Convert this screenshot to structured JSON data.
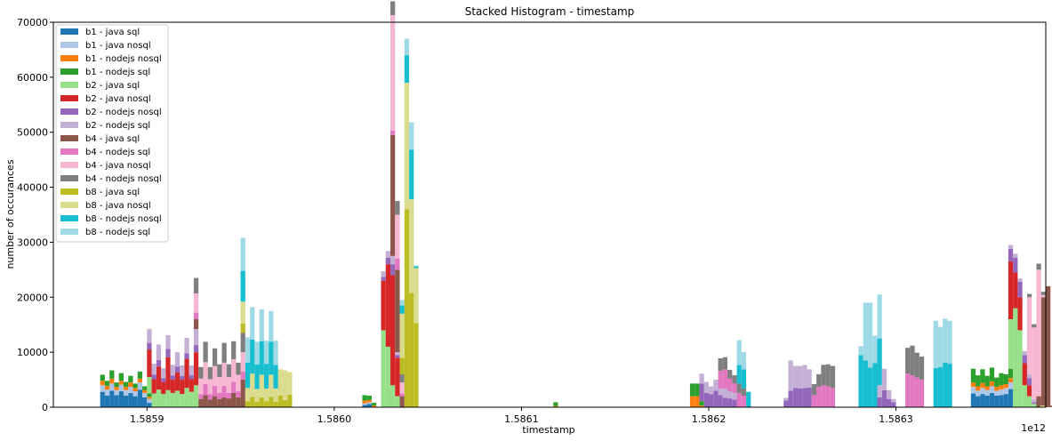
{
  "chart_data": {
    "type": "bar",
    "title": "Stacked Histogram - timestamp",
    "xlabel": "timestamp",
    "ylabel": "number of occurances",
    "offset_label": "1e12",
    "x_scale_note": "x values in units of 1e12",
    "xlim": [
      1.58585,
      1.58638
    ],
    "ylim": [
      0,
      70000
    ],
    "x_ticks": [
      1.5859,
      1.586,
      1.5861,
      1.5862,
      1.5863
    ],
    "x_tick_labels": [
      "1.5859",
      "1.5860",
      "1.5861",
      "1.5862",
      "1.5863"
    ],
    "y_ticks": [
      0,
      10000,
      20000,
      30000,
      40000,
      50000,
      60000,
      70000
    ],
    "y_tick_labels": [
      "0",
      "10000",
      "20000",
      "30000",
      "40000",
      "50000",
      "60000",
      "70000"
    ],
    "bin_width": 2.5e-06,
    "legend_position": "upper left",
    "series_names": [
      "b1 - java sql",
      "b1 - java nosql",
      "b1 - nodejs nosql",
      "b1 - nodejs sql",
      "b2 - java sql",
      "b2 - java nosql",
      "b2 - nodejs nosql",
      "b2 - nodejs sql",
      "b4 - java sql",
      "b4 - nodejs sql",
      "b4 - java nosql",
      "b4 - nodejs nosql",
      "b8 - java sql",
      "b8 - java nosql",
      "b8 - nodejs nosql",
      "b8 - nodejs sql"
    ],
    "series_colors": [
      "#1f77b4",
      "#aec7e8",
      "#ff7f0e",
      "#2ca02c",
      "#98df8a",
      "#d62728",
      "#9467bd",
      "#c5b0d5",
      "#8c564b",
      "#e377c2",
      "#f7b6d2",
      "#7f7f7f",
      "#bcbd22",
      "#dbdb8d",
      "#17becf",
      "#9edae5"
    ],
    "groups": [
      {
        "series": 0,
        "x_start": 1.585875,
        "values": [
          2800,
          2100,
          3000,
          2200,
          2900,
          2100,
          2600,
          2000,
          3200,
          1800,
          800
        ]
      },
      {
        "series": 1,
        "x_start": 1.585875,
        "values": [
          1200,
          1100,
          1300,
          900,
          1200,
          1000,
          1100,
          900,
          1300,
          800,
          700
        ]
      },
      {
        "series": 2,
        "x_start": 1.585875,
        "values": [
          800,
          700,
          900,
          600,
          700,
          600,
          800,
          600,
          700,
          500,
          400
        ]
      },
      {
        "series": 3,
        "x_start": 1.585875,
        "values": [
          1100,
          900,
          1500,
          800,
          1400,
          900,
          1200,
          800,
          1300,
          700,
          600
        ]
      },
      {
        "series": 4,
        "x_start": 1.5859,
        "values": [
          3000,
          2500,
          3200,
          2400,
          3100,
          2600,
          3000,
          2400,
          3500,
          2800,
          4000
        ]
      },
      {
        "series": 5,
        "x_start": 1.5859,
        "values": [
          5000,
          2600,
          4200,
          2200,
          6000,
          2400,
          3300,
          2600,
          5300,
          2300,
          6000
        ]
      },
      {
        "series": 6,
        "x_start": 1.5859,
        "values": [
          1200,
          800,
          1200,
          700,
          1500,
          800,
          1100,
          700,
          1000,
          700,
          1300
        ]
      },
      {
        "series": 7,
        "x_start": 1.5859,
        "values": [
          2500,
          2000,
          2800,
          1800,
          2500,
          1900,
          2600,
          1900,
          2800,
          1800,
          2900
        ]
      },
      {
        "series": 8,
        "x_start": 1.585925,
        "values": [
          1800,
          1500,
          2200,
          1400,
          2000,
          1500,
          1800,
          1600,
          2600,
          1800,
          5000
        ]
      },
      {
        "series": 9,
        "x_start": 1.585925,
        "values": [
          1200,
          900,
          2000,
          1000,
          1900,
          1100,
          2100,
          1000,
          2000,
          1100,
          1500
        ]
      },
      {
        "series": 10,
        "x_start": 1.585925,
        "values": [
          3500,
          2800,
          4000,
          2700,
          3600,
          2900,
          4200,
          2900,
          4100,
          3000,
          3500
        ]
      },
      {
        "series": 11,
        "x_start": 1.585925,
        "values": [
          2800,
          2100,
          3700,
          2200,
          3200,
          2300,
          3600,
          2300,
          3300,
          2200,
          3500
        ]
      },
      {
        "series": 12,
        "x_start": 1.58595,
        "values": [
          1700,
          1100,
          1900,
          1000,
          1800,
          1100,
          1900,
          1000,
          2100,
          1300,
          2300
        ]
      },
      {
        "series": 13,
        "x_start": 1.58595,
        "values": [
          4000,
          2400,
          4200,
          2300,
          4100,
          2300,
          4000,
          2400,
          4800,
          5400,
          4100
        ]
      },
      {
        "series": 14,
        "x_start": 1.58595,
        "values": [
          5600,
          4600,
          6200,
          4500,
          6100,
          4500,
          6000,
          4300,
          0,
          0,
          0
        ]
      },
      {
        "series": 15,
        "x_start": 1.58595,
        "values": [
          6000,
          4600,
          5900,
          4100,
          5800,
          4200,
          5600,
          4400,
          0,
          0,
          0
        ]
      },
      {
        "series": 0,
        "x_start": 1.586015,
        "values": [
          400,
          600,
          0
        ]
      },
      {
        "series": 1,
        "x_start": 1.586015,
        "values": [
          300,
          300,
          0
        ]
      },
      {
        "series": 2,
        "x_start": 1.586015,
        "values": [
          500,
          400,
          300
        ]
      },
      {
        "series": 3,
        "x_start": 1.586015,
        "values": [
          1000,
          800,
          500
        ]
      },
      {
        "series": 4,
        "x_start": 1.586025,
        "values": [
          14000,
          11000,
          4000,
          2000
        ]
      },
      {
        "series": 5,
        "x_start": 1.586025,
        "values": [
          9000,
          15000,
          20000,
          7000
        ]
      },
      {
        "series": 6,
        "x_start": 1.586025,
        "values": [
          700,
          1200,
          2000,
          500
        ]
      },
      {
        "series": 7,
        "x_start": 1.586025,
        "values": [
          1000,
          1200,
          1500,
          500
        ]
      },
      {
        "series": 8,
        "x_start": 1.58603,
        "values": [
          22000,
          15000,
          2000
        ]
      },
      {
        "series": 9,
        "x_start": 1.58603,
        "values": [
          800,
          2000,
          500
        ]
      },
      {
        "series": 10,
        "x_start": 1.58603,
        "values": [
          21000,
          8000,
          2000
        ]
      },
      {
        "series": 11,
        "x_start": 1.58603,
        "values": [
          2500,
          2500,
          1500
        ]
      },
      {
        "series": 12,
        "x_start": 1.586035,
        "values": [
          3000,
          36000,
          20800,
          15300
        ]
      },
      {
        "series": 13,
        "x_start": 1.586035,
        "values": [
          8000,
          23000,
          17000,
          10000
        ]
      },
      {
        "series": 14,
        "x_start": 1.586035,
        "values": [
          1500,
          5000,
          9000,
          300
        ]
      },
      {
        "series": 15,
        "x_start": 1.586035,
        "values": [
          1000,
          3000,
          5000,
          200
        ]
      },
      {
        "series": 3,
        "x_start": 1.586117,
        "values": [
          700
        ]
      },
      {
        "series": 2,
        "x_start": 1.586117,
        "values": [
          200
        ]
      },
      {
        "series": 2,
        "x_start": 1.58619,
        "values": [
          2000,
          2000,
          300
        ]
      },
      {
        "series": 3,
        "x_start": 1.58619,
        "values": [
          2300,
          2300,
          800
        ]
      },
      {
        "series": 6,
        "x_start": 1.586195,
        "values": [
          3200,
          2600,
          2400,
          3000,
          2200,
          1700,
          1600,
          1400
        ]
      },
      {
        "series": 7,
        "x_start": 1.586195,
        "values": [
          1800,
          2000,
          1400,
          2000,
          1200,
          1700,
          1300,
          1200
        ]
      },
      {
        "series": 9,
        "x_start": 1.586205,
        "values": [
          3200,
          3500,
          2300,
          1700,
          2600,
          2100
        ]
      },
      {
        "series": 11,
        "x_start": 1.586205,
        "values": [
          2300,
          2200,
          1600,
          1500,
          1700,
          1300
        ]
      },
      {
        "series": 14,
        "x_start": 1.586215,
        "values": [
          3400,
          3500,
          2800
        ]
      },
      {
        "series": 15,
        "x_start": 1.586215,
        "values": [
          4500,
          3100,
          0
        ]
      },
      {
        "series": 6,
        "x_start": 1.58624,
        "values": [
          1200,
          3000,
          3500,
          3400,
          3500,
          3600
        ]
      },
      {
        "series": 7,
        "x_start": 1.58624,
        "values": [
          500,
          5500,
          4000,
          4100,
          4200,
          3300
        ]
      },
      {
        "series": 9,
        "x_start": 1.586255,
        "values": [
          2200,
          3700,
          4000,
          3800,
          3500
        ]
      },
      {
        "series": 11,
        "x_start": 1.586255,
        "values": [
          2000,
          2300,
          3700,
          4000,
          4000
        ]
      },
      {
        "series": 14,
        "x_start": 1.58628,
        "values": [
          9500,
          8500,
          7200,
          8000,
          8500
        ]
      },
      {
        "series": 15,
        "x_start": 1.58628,
        "values": [
          1600,
          10500,
          11800,
          5000,
          8000
        ]
      },
      {
        "series": 6,
        "x_start": 1.58629,
        "values": [
          1800,
          3100,
          1500,
          900
        ]
      },
      {
        "series": 7,
        "x_start": 1.58629,
        "values": [
          2200,
          3900,
          1600,
          600
        ]
      },
      {
        "series": 9,
        "x_start": 1.586305,
        "values": [
          6100,
          5800,
          5400,
          5000
        ]
      },
      {
        "series": 11,
        "x_start": 1.586305,
        "values": [
          4700,
          5400,
          4500,
          4200
        ]
      },
      {
        "series": 14,
        "x_start": 1.58632,
        "values": [
          7100,
          7300,
          8100,
          7900
        ]
      },
      {
        "series": 15,
        "x_start": 1.58632,
        "values": [
          8600,
          7300,
          8000,
          7800
        ]
      },
      {
        "series": 0,
        "x_start": 1.58634,
        "values": [
          2500,
          2000,
          2400,
          2100,
          2600,
          2100,
          2200,
          2400,
          3300
        ]
      },
      {
        "series": 1,
        "x_start": 1.58634,
        "values": [
          1200,
          1000,
          1100,
          1000,
          1200,
          900,
          1000,
          1100,
          1200
        ]
      },
      {
        "series": 2,
        "x_start": 1.58634,
        "values": [
          800,
          800,
          900,
          700,
          900,
          700,
          800,
          700,
          800
        ]
      },
      {
        "series": 3,
        "x_start": 1.58634,
        "values": [
          2500,
          2000,
          2500,
          1900,
          2500,
          1700,
          2200,
          1800,
          1700
        ]
      },
      {
        "series": 4,
        "x_start": 1.58636,
        "values": [
          9000,
          18000,
          14000,
          4000,
          2000,
          600
        ]
      },
      {
        "series": 5,
        "x_start": 1.58636,
        "values": [
          10500,
          6500,
          6000,
          4000,
          2000,
          0
        ]
      },
      {
        "series": 6,
        "x_start": 1.58636,
        "values": [
          2300,
          2700,
          2800,
          1500,
          1300,
          300
        ]
      },
      {
        "series": 7,
        "x_start": 1.58636,
        "values": [
          700,
          700,
          600,
          700,
          700,
          600
        ]
      },
      {
        "series": 8,
        "x_start": 1.586375,
        "values": [
          2000,
          20000,
          22000,
          300
        ]
      },
      {
        "series": 10,
        "x_start": 1.58637,
        "values": [
          14000,
          13000,
          23000,
          400
        ]
      },
      {
        "series": 11,
        "x_start": 1.58637,
        "values": [
          600,
          600,
          1100,
          600
        ]
      },
      {
        "series": 13,
        "x_start": 1.586377,
        "values": [
          300
        ]
      }
    ]
  }
}
